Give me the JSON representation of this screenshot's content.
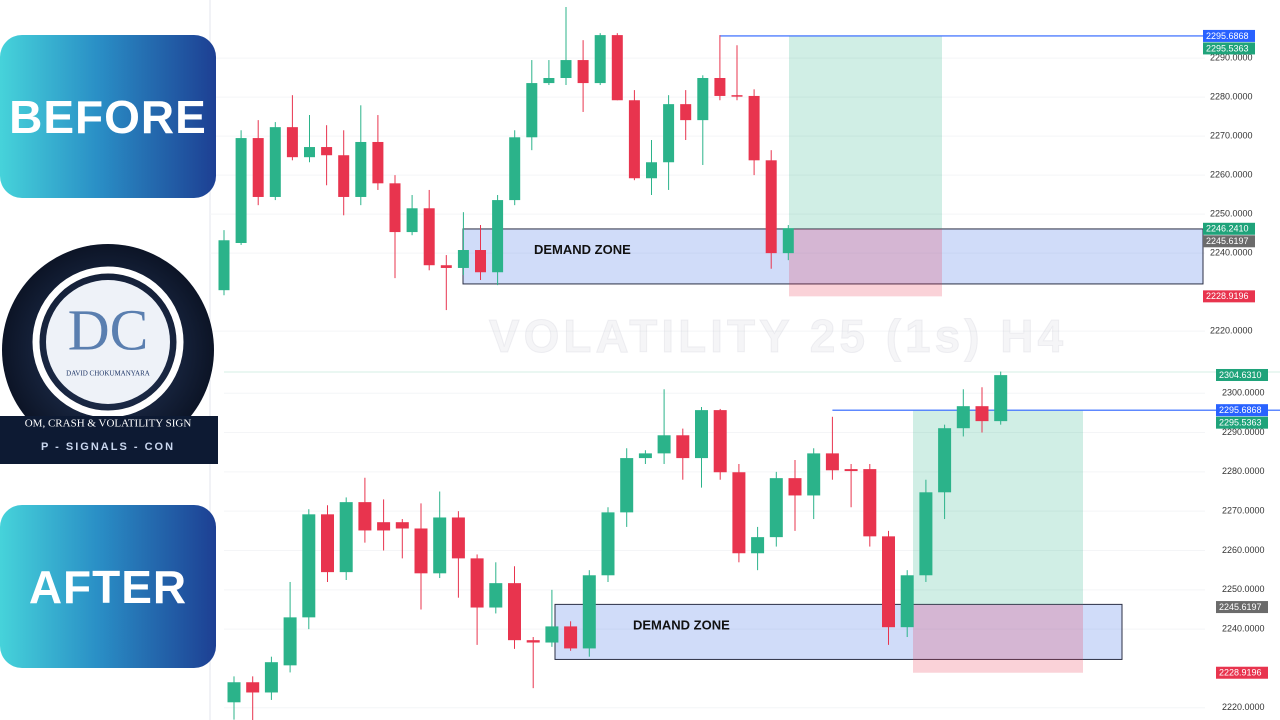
{
  "cards": {
    "before": "BEFORE",
    "after": "AFTER"
  },
  "logo": {
    "initials": "DC",
    "name": "DAVID CHOKUMANYARA",
    "line1": "OM, CRASH & VOLATILITY SIGN",
    "line2": "P - SIGNALS - CON"
  },
  "watermark": "VOLATILITY 25 (1s) H4",
  "chart_data": [
    {
      "type": "candlestick",
      "up_color": "#2bb38a",
      "down_color": "#e8344e",
      "ylim": [
        2212.6,
        2304.9
      ],
      "yticks": [
        {
          "value": 2290,
          "label": "2290.0000"
        },
        {
          "value": 2280,
          "label": "2280.0000"
        },
        {
          "value": 2270,
          "label": "2270.0000"
        },
        {
          "value": 2260,
          "label": "2260.0000"
        },
        {
          "value": 2250,
          "label": "2250.0000"
        },
        {
          "value": 2240,
          "label": "2240.0000"
        },
        {
          "value": 2220,
          "label": "2220.0000"
        }
      ],
      "open": [
        2230.5,
        2242.6,
        2269.5,
        2254.4,
        2272.3,
        2264.6,
        2267.2,
        2265.1,
        2254.4,
        2268.5,
        2257.9,
        2245.4,
        2251.5,
        2236.9,
        2236.2,
        2240.8,
        2235.1,
        2253.6,
        2269.7,
        2283.6,
        2284.9,
        2289.5,
        2283.6,
        2295.9,
        2279.2,
        2259.2,
        2263.3,
        2278.2,
        2274.1,
        2284.9,
        2280.5,
        2280.3,
        2263.8,
        2240.0
      ],
      "high": [
        2245.9,
        2271.5,
        2274.1,
        2273.6,
        2280.5,
        2275.4,
        2272.8,
        2271.5,
        2277.9,
        2275.4,
        2260.0,
        2254.9,
        2256.2,
        2239.5,
        2250.5,
        2247.2,
        2254.9,
        2271.5,
        2289.5,
        2289.5,
        2303.1,
        2294.6,
        2296.4,
        2296.4,
        2281.8,
        2269.0,
        2280.5,
        2281.8,
        2285.6,
        2295.9,
        2293.3,
        2282.0,
        2266.4,
        2247.2
      ],
      "low": [
        2229.2,
        2242.1,
        2252.3,
        2253.6,
        2263.8,
        2263.3,
        2257.4,
        2249.7,
        2252.3,
        2256.2,
        2233.6,
        2244.6,
        2235.6,
        2225.4,
        2234.4,
        2233.1,
        2231.8,
        2252.3,
        2266.4,
        2283.1,
        2283.1,
        2276.2,
        2283.1,
        2279.2,
        2258.7,
        2254.9,
        2256.2,
        2269.0,
        2262.6,
        2279.2,
        2279.2,
        2260.0,
        2236.0,
        2238.2
      ],
      "close": [
        2243.3,
        2269.5,
        2254.4,
        2272.3,
        2264.6,
        2267.2,
        2265.1,
        2254.4,
        2268.5,
        2257.9,
        2245.4,
        2251.5,
        2236.9,
        2236.2,
        2240.8,
        2235.1,
        2253.6,
        2269.7,
        2283.6,
        2284.9,
        2289.5,
        2283.6,
        2295.9,
        2279.2,
        2259.2,
        2263.3,
        2278.2,
        2274.1,
        2284.9,
        2280.3,
        2280.3,
        2263.8,
        2240.0,
        2246.4
      ],
      "zone": {
        "label": "DEMAND ZONE",
        "range": [
          2232.1,
          2246.2
        ]
      },
      "position": {
        "entry": 2246.241,
        "target": 2295.5363,
        "stop": 2228.9196
      },
      "price_tags": [
        {
          "value": 2295.6868,
          "color": "#2962ff"
        },
        {
          "value": 2295.5363,
          "color": "#1fa37a"
        },
        {
          "value": 2246.241,
          "label": "2246.2410",
          "color": "#1fa37a"
        },
        {
          "value": 2245.6197,
          "color": "#6b6b6b"
        },
        {
          "value": 2228.9196,
          "color": "#e8344e"
        }
      ]
    },
    {
      "type": "candlestick",
      "up_color": "#2bb38a",
      "down_color": "#e8344e",
      "ylim": [
        2216.9,
        2305.9
      ],
      "yticks": [
        {
          "value": 2300,
          "label": "2300.0000"
        },
        {
          "value": 2290,
          "label": "2290.0000"
        },
        {
          "value": 2280,
          "label": "2280.0000"
        },
        {
          "value": 2270,
          "label": "2270.0000"
        },
        {
          "value": 2260,
          "label": "2260.0000"
        },
        {
          "value": 2250,
          "label": "2250.0000"
        },
        {
          "value": 2240,
          "label": "2240.0000"
        },
        {
          "value": 2220,
          "label": "2220.0000"
        }
      ],
      "open": [
        2221.4,
        2226.5,
        2223.9,
        2230.8,
        2243.0,
        2269.2,
        2254.5,
        2272.3,
        2267.2,
        2267.2,
        2265.6,
        2254.2,
        2268.4,
        2258.0,
        2245.5,
        2251.7,
        2237.2,
        2236.6,
        2240.7,
        2235.1,
        2253.7,
        2269.7,
        2283.5,
        2284.7,
        2289.3,
        2283.5,
        2295.7,
        2279.9,
        2259.3,
        2263.4,
        2278.4,
        2274.0,
        2284.7,
        2280.7,
        2280.7,
        2263.6,
        2240.5,
        2253.7,
        2274.8,
        2291.1,
        2296.7,
        2292.9
      ],
      "high": [
        2228.0,
        2228.0,
        2233.0,
        2252.0,
        2270.5,
        2271.5,
        2273.5,
        2278.5,
        2273.0,
        2268.0,
        2272.0,
        2275.0,
        2270.0,
        2259.0,
        2257.0,
        2256.0,
        2238.0,
        2250.0,
        2242.0,
        2255.0,
        2271.0,
        2286.0,
        2285.5,
        2301.0,
        2291.0,
        2296.5,
        2296.0,
        2282.0,
        2266.0,
        2280.0,
        2283.0,
        2286.0,
        2294.0,
        2282.0,
        2282.0,
        2265.0,
        2255.0,
        2278.0,
        2292.0,
        2301.0,
        2301.5,
        2305.5
      ],
      "low": [
        2217.0,
        2215.0,
        2222.0,
        2229.0,
        2240.0,
        2252.0,
        2252.5,
        2262.0,
        2260.0,
        2258.0,
        2245.0,
        2253.0,
        2248.0,
        2236.0,
        2244.0,
        2235.0,
        2225.0,
        2235.5,
        2234.5,
        2233.0,
        2252.0,
        2266.0,
        2282.0,
        2282.0,
        2278.0,
        2276.0,
        2278.0,
        2257.0,
        2255.0,
        2261.0,
        2265.0,
        2268.0,
        2278.0,
        2271.0,
        2261.0,
        2236.0,
        2238.0,
        2252.0,
        2268.0,
        2289.0,
        2290.0,
        2292.0
      ],
      "close": [
        2226.5,
        2223.9,
        2231.6,
        2243.0,
        2269.2,
        2254.5,
        2272.3,
        2265.1,
        2265.1,
        2265.6,
        2254.2,
        2268.4,
        2258.0,
        2245.5,
        2251.7,
        2237.2,
        2236.6,
        2240.7,
        2235.1,
        2253.7,
        2269.7,
        2283.5,
        2284.7,
        2289.3,
        2283.5,
        2295.7,
        2279.9,
        2259.3,
        2263.4,
        2278.4,
        2274.0,
        2284.7,
        2280.4,
        2280.2,
        2263.6,
        2240.5,
        2253.7,
        2274.8,
        2291.1,
        2296.7,
        2292.9,
        2304.6
      ],
      "zone": {
        "label": "DEMAND ZONE",
        "range": [
          2232.3,
          2246.3
        ]
      },
      "position": {
        "entry": 2246.241,
        "target": 2295.5363,
        "stop": 2228.9196
      },
      "price_tags": [
        {
          "value": 2304.631,
          "label": "2304.6310",
          "color": "#1fa37a"
        },
        {
          "value": 2295.6868,
          "color": "#2962ff"
        },
        {
          "value": 2295.5363,
          "color": "#1fa37a"
        },
        {
          "value": 2245.6197,
          "color": "#6b6b6b"
        },
        {
          "value": 2228.9196,
          "color": "#e8344e"
        }
      ]
    }
  ]
}
